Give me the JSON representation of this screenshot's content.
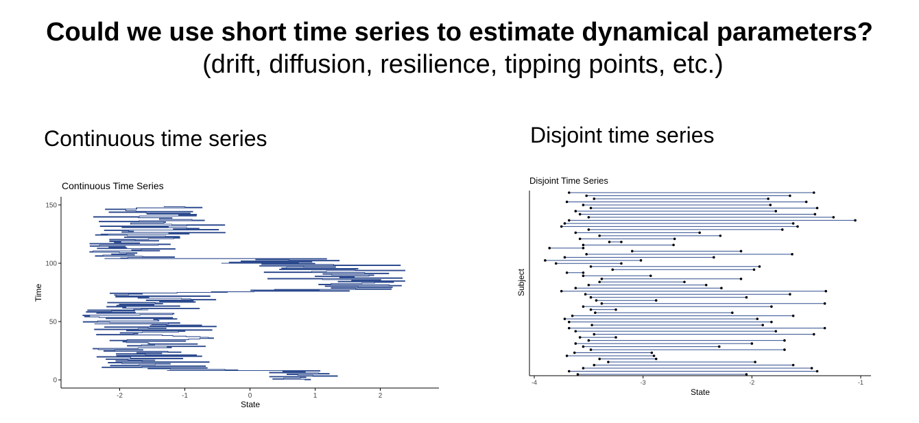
{
  "slide": {
    "title": "Could we use short time series to estimate dynamical parameters?",
    "subtitle": "(drift, diffusion, resilience, tipping points, etc.)",
    "left_heading": "Continuous time series",
    "right_heading": "Disjoint time series"
  },
  "colors": {
    "line": "#2c4a8e",
    "point": "#000000",
    "axis": "#000000"
  },
  "chart_data": [
    {
      "type": "line",
      "title": "Continuous Time Series",
      "xlabel": "State",
      "ylabel": "Time",
      "xlim": [
        -2.9,
        2.9
      ],
      "ylim": [
        -7,
        157
      ],
      "xticks": [
        -2,
        -1,
        0,
        1,
        2
      ],
      "yticks": [
        0,
        50,
        100,
        150
      ],
      "grid": false,
      "segments": [
        {
          "t0": 0,
          "t1": 8,
          "lo": 0.2,
          "hi": 1.5
        },
        {
          "t0": 8,
          "t1": 10,
          "lo": -1.7,
          "hi": 1.0
        },
        {
          "t0": 10,
          "t1": 30,
          "lo": -2.5,
          "hi": -0.6
        },
        {
          "t0": 30,
          "t1": 48,
          "lo": -2.4,
          "hi": -0.5
        },
        {
          "t0": 48,
          "t1": 60,
          "lo": -2.6,
          "hi": -0.9
        },
        {
          "t0": 60,
          "t1": 75,
          "lo": -2.2,
          "hi": -0.4
        },
        {
          "t0": 75,
          "t1": 77,
          "lo": -2.1,
          "hi": 1.9
        },
        {
          "t0": 77,
          "t1": 100,
          "lo": 0.1,
          "hi": 2.4
        },
        {
          "t0": 100,
          "t1": 104,
          "lo": -0.9,
          "hi": 1.6
        },
        {
          "t0": 104,
          "t1": 125,
          "lo": -2.5,
          "hi": -1.0
        },
        {
          "t0": 125,
          "t1": 140,
          "lo": -2.6,
          "hi": -0.3
        },
        {
          "t0": 140,
          "t1": 149,
          "lo": -2.3,
          "hi": -0.7
        }
      ]
    },
    {
      "type": "scatter",
      "title": "Disjoint Time Series",
      "xlabel": "State",
      "ylabel": "Subject",
      "xlim": [
        -4.05,
        -0.95
      ],
      "xticks": [
        -4,
        -3,
        -2,
        -1
      ],
      "grid": false,
      "subjects": [
        [
          -3.68,
          -1.43
        ],
        [
          -3.52,
          -1.65
        ],
        [
          -3.45,
          -1.85
        ],
        [
          -3.7,
          -1.5
        ],
        [
          -3.55,
          -1.83
        ],
        [
          -3.48,
          -1.4
        ],
        [
          -3.62,
          -1.78
        ],
        [
          -3.58,
          -1.42
        ],
        [
          -3.5,
          -1.25
        ],
        [
          -3.68,
          -1.05
        ],
        [
          -3.72,
          -1.62
        ],
        [
          -3.75,
          -1.58
        ],
        [
          -3.5,
          -1.72
        ],
        [
          -3.62,
          -2.48
        ],
        [
          -3.4,
          -2.29
        ],
        [
          -3.58,
          -2.71
        ],
        [
          -3.31,
          -3.2
        ],
        [
          -3.55,
          -2.72
        ],
        [
          -3.86,
          -3.55
        ],
        [
          -3.1,
          -2.1
        ],
        [
          -3.52,
          -1.63
        ],
        [
          -3.72,
          -2.35
        ],
        [
          -3.9,
          -3.02
        ],
        [
          -3.8,
          -3.2
        ],
        [
          -3.48,
          -1.93
        ],
        [
          -3.28,
          -1.98
        ],
        [
          -3.7,
          -3.55
        ],
        [
          -3.55,
          -2.93
        ],
        [
          -3.38,
          -2.1
        ],
        [
          -3.4,
          -2.62
        ],
        [
          -3.5,
          -2.42
        ],
        [
          -3.62,
          -2.28
        ],
        [
          -3.75,
          -1.32
        ],
        [
          -3.53,
          -1.65
        ],
        [
          -3.48,
          -2.05
        ],
        [
          -3.43,
          -2.88
        ],
        [
          -3.38,
          -1.33
        ],
        [
          -3.55,
          -1.82
        ],
        [
          -3.48,
          -3.25
        ],
        [
          -3.44,
          -2.18
        ],
        [
          -3.65,
          -1.62
        ],
        [
          -3.72,
          -1.95
        ],
        [
          -3.68,
          -1.82
        ],
        [
          -3.47,
          -1.9
        ],
        [
          -3.68,
          -1.33
        ],
        [
          -3.62,
          -1.78
        ],
        [
          -3.45,
          -1.43
        ],
        [
          -3.58,
          -3.25
        ],
        [
          -3.5,
          -1.7
        ],
        [
          -3.62,
          -2.0
        ],
        [
          -3.55,
          -2.3
        ],
        [
          -3.48,
          -1.7
        ],
        [
          -3.63,
          -2.92
        ],
        [
          -3.7,
          -2.9
        ],
        [
          -3.4,
          -2.88
        ],
        [
          -3.32,
          -1.97
        ],
        [
          -3.45,
          -1.62
        ],
        [
          -3.55,
          -1.45
        ],
        [
          -3.68,
          -1.4
        ],
        [
          -3.6,
          -2.05
        ]
      ]
    }
  ]
}
